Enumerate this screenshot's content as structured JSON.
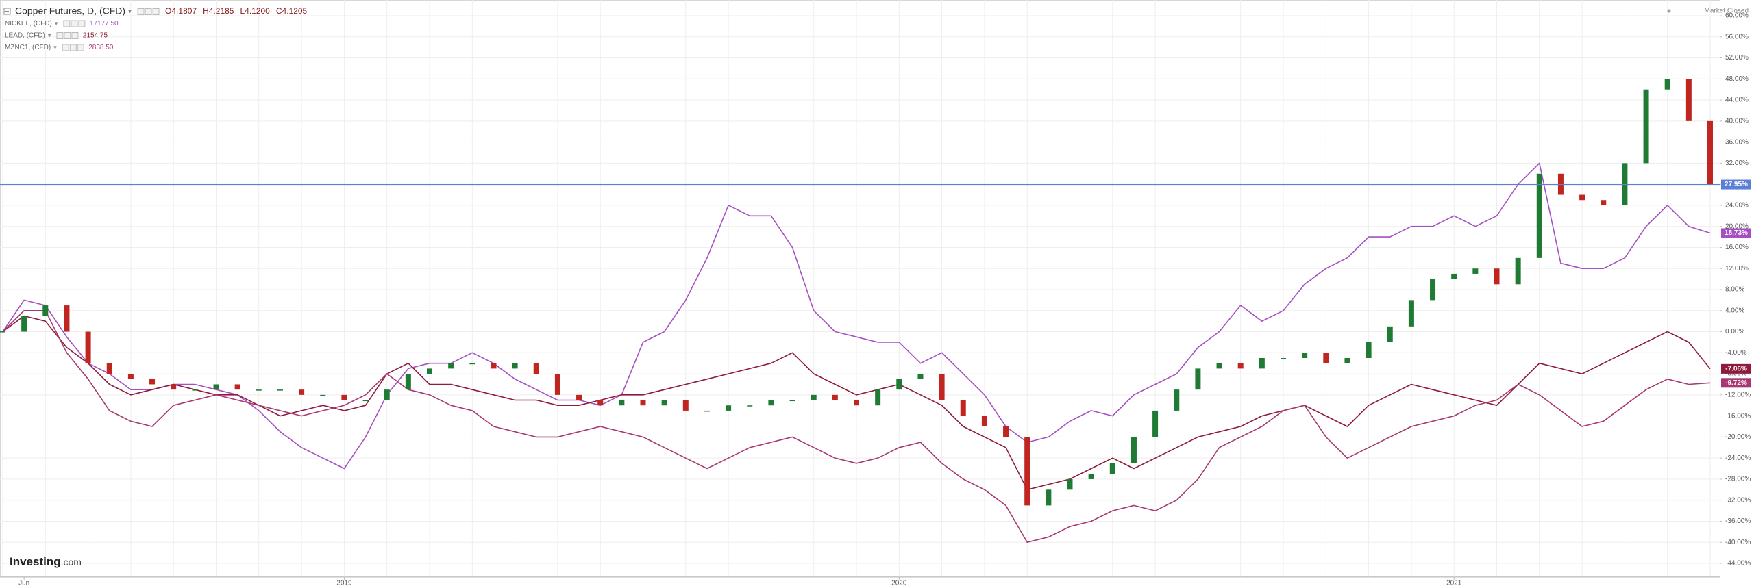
{
  "chart_data": {
    "type": "line",
    "status": "Market Closed",
    "logo": [
      "Investing",
      ".com"
    ],
    "ohlc": [
      "O4.1807",
      "H4.2185",
      "L4.1200",
      "C4.1205"
    ],
    "categories": [
      null,
      "Jun",
      null,
      null,
      null,
      null,
      null,
      null,
      null,
      null,
      null,
      null,
      null,
      null,
      null,
      null,
      "2019",
      null,
      null,
      null,
      null,
      null,
      null,
      null,
      null,
      null,
      null,
      null,
      null,
      null,
      null,
      null,
      null,
      null,
      null,
      null,
      null,
      null,
      null,
      null,
      null,
      null,
      "2020",
      null,
      null,
      null,
      null,
      null,
      null,
      null,
      null,
      null,
      null,
      null,
      null,
      null,
      null,
      null,
      null,
      null,
      null,
      null,
      null,
      null,
      null,
      null,
      null,
      null,
      "2021",
      null,
      null,
      null,
      null,
      null,
      null,
      null,
      null,
      null,
      null,
      null,
      null
    ],
    "ylim": [
      -44,
      60
    ],
    "yticks": [
      {
        "value": 60,
        "label": "60.00%"
      },
      {
        "value": 56,
        "label": "56.00%"
      },
      {
        "value": 52,
        "label": "52.00%"
      },
      {
        "value": 48,
        "label": "48.00%"
      },
      {
        "value": 44,
        "label": "44.00%"
      },
      {
        "value": 40,
        "label": "40.00%"
      },
      {
        "value": 36,
        "label": "36.00%"
      },
      {
        "value": 32,
        "label": "32.00%"
      },
      {
        "value": 28,
        "label": "28.00%"
      },
      {
        "value": 24,
        "label": "24.00%"
      },
      {
        "value": 20,
        "label": "20.00%"
      },
      {
        "value": 16,
        "label": "16.00%"
      },
      {
        "value": 12,
        "label": "12.00%"
      },
      {
        "value": 8,
        "label": "8.00%"
      },
      {
        "value": 4,
        "label": "4.00%"
      },
      {
        "value": 0,
        "label": "0.00%"
      },
      {
        "value": -4,
        "label": "-4.00%"
      },
      {
        "value": -8,
        "label": "-8.00%"
      },
      {
        "value": -12,
        "label": "-12.00%"
      },
      {
        "value": -16,
        "label": "-16.00%"
      },
      {
        "value": -20,
        "label": "-20.00%"
      },
      {
        "value": -24,
        "label": "-24.00%"
      },
      {
        "value": -28,
        "label": "-28.00%"
      },
      {
        "value": -32,
        "label": "-32.00%"
      },
      {
        "value": -36,
        "label": "-36.00%"
      },
      {
        "value": -40,
        "label": "-40.00%"
      },
      {
        "value": -44,
        "label": "-44.00%"
      }
    ],
    "grid": true,
    "series": [
      {
        "name": "Copper Futures, D, (CFD)",
        "mark": "candle",
        "color": "#5b7fd6",
        "up_color": "#1f7a33",
        "down_color": "#c0261f",
        "price_line": true,
        "badge": {
          "value": 27.95,
          "label": "27.95%"
        },
        "values": [
          0,
          3,
          5,
          0,
          -6,
          -8,
          -9,
          -10,
          -11,
          -11,
          -10,
          -11,
          -11,
          -11,
          -12,
          -12,
          -13,
          -13,
          -11,
          -8,
          -7,
          -6,
          -6,
          -7,
          -6,
          -8,
          -12,
          -13,
          -14,
          -13,
          -14,
          -13,
          -15,
          -15,
          -14,
          -14,
          -13,
          -13,
          -12,
          -13,
          -14,
          -11,
          -9,
          -8,
          -13,
          -16,
          -18,
          -20,
          -33,
          -30,
          -28,
          -27,
          -25,
          -20,
          -15,
          -11,
          -7,
          -6,
          -7,
          -5,
          -5,
          -4,
          -6,
          -5,
          -2,
          1,
          6,
          10,
          11,
          12,
          9,
          14,
          30,
          26,
          25,
          24,
          32,
          46,
          48,
          40,
          27.95
        ]
      },
      {
        "name": "NICKEL, (CFD)",
        "mark": "line",
        "color": "#a64fc2",
        "last_price": {
          "value": 17177.5,
          "label": "17177.50"
        },
        "badge": {
          "value": 18.73,
          "label": "18.73%"
        },
        "values": [
          0,
          6,
          5,
          -1,
          -6,
          -8,
          -11,
          -11,
          -10,
          -10,
          -11,
          -12,
          -15,
          -19,
          -22,
          -24,
          -26,
          -20,
          -12,
          -7,
          -6,
          -6,
          -4,
          -6,
          -9,
          -11,
          -13,
          -13,
          -14,
          -12,
          -2,
          0,
          6,
          14,
          24,
          22,
          22,
          16,
          4,
          0,
          -1,
          -2,
          -2,
          -6,
          -4,
          -8,
          -12,
          -18,
          -21,
          -20,
          -17,
          -15,
          -16,
          -12,
          -10,
          -8,
          -3,
          0,
          5,
          2,
          4,
          9,
          12,
          14,
          18,
          18,
          20,
          20,
          22,
          20,
          22,
          28,
          32,
          13,
          12,
          12,
          14,
          20,
          24,
          20,
          18.73
        ]
      },
      {
        "name": "LEAD, (CFD)",
        "mark": "line",
        "color": "#8e1b3d",
        "last_price": {
          "value": 2154.75,
          "label": "2154.75"
        },
        "badge": {
          "value": -7.06,
          "label": "-7.06%"
        },
        "values": [
          0,
          3,
          2,
          -3,
          -6,
          -10,
          -12,
          -11,
          -10,
          -11,
          -12,
          -12,
          -14,
          -16,
          -15,
          -14,
          -15,
          -14,
          -8,
          -6,
          -10,
          -10,
          -11,
          -12,
          -13,
          -13,
          -14,
          -14,
          -13,
          -12,
          -12,
          -11,
          -10,
          -9,
          -8,
          -7,
          -6,
          -4,
          -8,
          -10,
          -12,
          -11,
          -10,
          -12,
          -14,
          -18,
          -20,
          -22,
          -30,
          -29,
          -28,
          -26,
          -24,
          -26,
          -24,
          -22,
          -20,
          -19,
          -18,
          -16,
          -15,
          -14,
          -16,
          -18,
          -14,
          -12,
          -10,
          -11,
          -12,
          -13,
          -14,
          -10,
          -6,
          -7,
          -8,
          -6,
          -4,
          -2,
          0,
          -2,
          -7.06
        ]
      },
      {
        "name": "MZNC1, (CFD)",
        "mark": "line",
        "color": "#a83872",
        "last_price": {
          "value": 2838.5,
          "label": "2838.50"
        },
        "badge": {
          "value": -9.72,
          "label": "-9.72%"
        },
        "values": [
          0,
          4,
          4,
          -4,
          -9,
          -15,
          -17,
          -18,
          -14,
          -13,
          -12,
          -13,
          -14,
          -15,
          -16,
          -15,
          -14,
          -12,
          -8,
          -11,
          -12,
          -14,
          -15,
          -18,
          -19,
          -20,
          -20,
          -19,
          -18,
          -19,
          -20,
          -22,
          -24,
          -26,
          -24,
          -22,
          -21,
          -20,
          -22,
          -24,
          -25,
          -24,
          -22,
          -21,
          -25,
          -28,
          -30,
          -33,
          -40,
          -39,
          -37,
          -36,
          -34,
          -33,
          -34,
          -32,
          -28,
          -22,
          -20,
          -18,
          -15,
          -14,
          -20,
          -24,
          -22,
          -20,
          -18,
          -17,
          -16,
          -14,
          -13,
          -10,
          -12,
          -15,
          -18,
          -17,
          -14,
          -11,
          -9,
          -10,
          -9.72
        ]
      }
    ]
  }
}
